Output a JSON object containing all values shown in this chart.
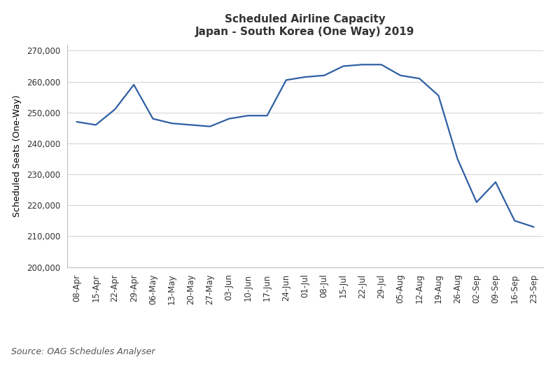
{
  "title_line1": "Scheduled Airline Capacity",
  "title_line2": "Japan - South Korea (One Way) 2019",
  "xlabel": "",
  "ylabel": "Scheduled Seats (One-Way)",
  "source_text": "Source: OAG Schedules Analyser",
  "line_color": "#2E5FA3",
  "line_width": 1.6,
  "background_color": "#ffffff",
  "ylim": [
    200000,
    272000
  ],
  "yticks": [
    200000,
    210000,
    220000,
    230000,
    240000,
    250000,
    260000,
    270000
  ],
  "categories": [
    "08-Apr",
    "15-Apr",
    "22-Apr",
    "29-Apr",
    "06-May",
    "13-May",
    "20-May",
    "27-May",
    "03-Jun",
    "10-Jun",
    "17-Jun",
    "24-Jun",
    "01-Jul",
    "08-Jul",
    "15-Jul",
    "22-Jul",
    "29-Jul",
    "05-Aug",
    "12-Aug",
    "19-Aug",
    "26-Aug",
    "02-Sep",
    "09-Sep",
    "16-Sep",
    "23-Sep"
  ],
  "values": [
    247000,
    246000,
    251000,
    259000,
    248000,
    246500,
    246000,
    245500,
    248000,
    249000,
    249000,
    260500,
    261500,
    262000,
    265000,
    265500,
    265500,
    262000,
    261000,
    255500,
    235000,
    221000,
    227500,
    215000,
    213000
  ],
  "title_fontsize": 11,
  "ylabel_fontsize": 9,
  "tick_fontsize": 8.5,
  "source_fontsize": 9,
  "grid_color": "#d0d0d0",
  "spine_color": "#c0c0c0"
}
